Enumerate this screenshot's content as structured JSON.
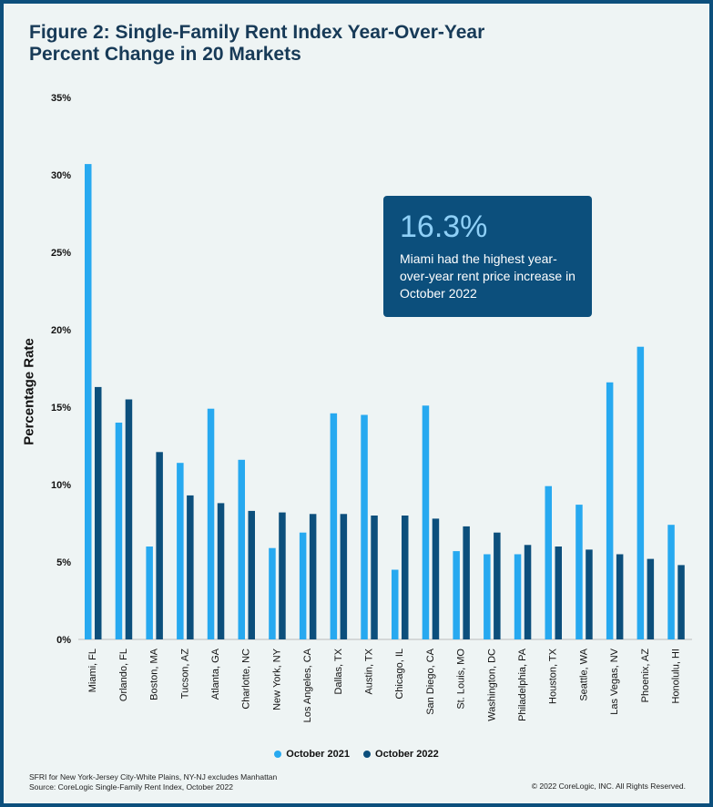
{
  "chart_data": {
    "type": "bar",
    "title": "Figure 2: Single-Family Rent Index Year-Over-Year Percent Change in 20 Markets",
    "ylabel": "Percentage Rate",
    "xlabel": "",
    "ylim": [
      0,
      35
    ],
    "yticks": [
      0,
      5,
      10,
      15,
      20,
      25,
      30,
      35
    ],
    "ytick_labels": [
      "0%",
      "5%",
      "10%",
      "15%",
      "20%",
      "25%",
      "30%",
      "35%"
    ],
    "grid": false,
    "legend": "bottom",
    "categories": [
      "Miami, FL",
      "Orlando, FL",
      "Boston, MA",
      "Tucson, AZ",
      "Atlanta, GA",
      "Charlotte, NC",
      "New York, NY",
      "Los Angeles, CA",
      "Dallas, TX",
      "Austin, TX",
      "Chicago, IL",
      "San Diego, CA",
      "St. Louis, MO",
      "Washington, DC",
      "Philadelphia, PA",
      "Houston, TX",
      "Seattle, WA",
      "Las Vegas, NV",
      "Phoenix, AZ",
      "Honolulu, HI"
    ],
    "series": [
      {
        "name": "October 2021",
        "color": "#27a9f0",
        "values": [
          30.7,
          14.0,
          6.0,
          11.4,
          14.9,
          11.6,
          5.9,
          6.9,
          14.6,
          14.5,
          4.5,
          15.1,
          5.7,
          5.5,
          5.5,
          9.9,
          8.7,
          16.6,
          18.9,
          7.4
        ]
      },
      {
        "name": "October 2022",
        "color": "#0c4f7c",
        "values": [
          16.3,
          15.5,
          12.1,
          9.3,
          8.8,
          8.3,
          8.2,
          8.1,
          8.1,
          8.0,
          8.0,
          7.8,
          7.3,
          6.9,
          6.1,
          6.0,
          5.8,
          5.5,
          5.2,
          4.8
        ]
      }
    ]
  },
  "callout": {
    "value": "16.3%",
    "text": "Miami had the highest year-over-year rent price increase in October 2022"
  },
  "footnote": {
    "line1": "SFRI for New York-Jersey City-White Plains, NY-NJ excludes Manhattan",
    "line2": "Source: CoreLogic Single-Family Rent Index, October 2022"
  },
  "copyright": "© 2022 CoreLogic, INC. All Rights Reserved."
}
